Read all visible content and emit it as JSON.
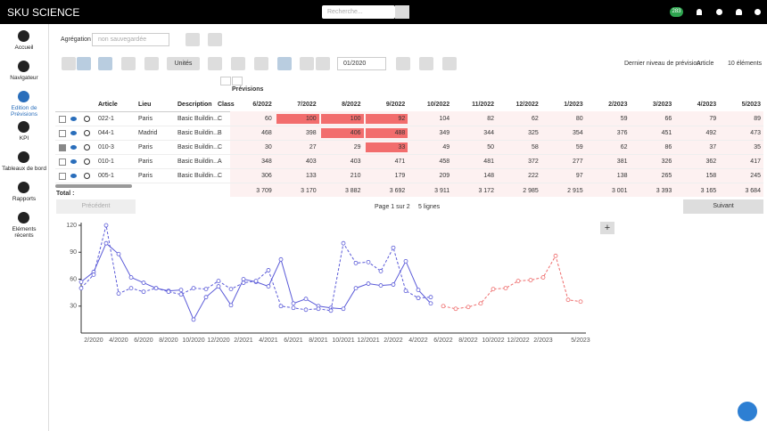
{
  "topbar": {
    "brand": "SKU SCIENCE",
    "search_placeholder": "Recherche...",
    "badge": "283"
  },
  "sidebar": [
    {
      "label": "Accueil",
      "active": false
    },
    {
      "label": "Navigateur",
      "active": false
    },
    {
      "label": "Edition de Prévisions",
      "active": true
    },
    {
      "label": "KPI",
      "active": false
    },
    {
      "label": "Tableaux de bord",
      "active": false
    },
    {
      "label": "Rapports",
      "active": false
    },
    {
      "label": "Eléments récents",
      "active": false
    }
  ],
  "toolbar": {
    "aggregation_label": "Agrégation",
    "aggregation_value": "non sauvegardée",
    "units_button": "Unités",
    "date": "01/2020",
    "level_label": "Dernier niveau de prévision:",
    "level_value": "Article",
    "count": "10 éléments"
  },
  "table": {
    "columns": [
      "Article",
      "Lieu",
      "Description",
      "Class"
    ],
    "forecast_header": "Prévisions",
    "months": [
      "6/2022",
      "7/2022",
      "8/2022",
      "9/2022",
      "10/2022",
      "11/2022",
      "12/2022",
      "1/2023",
      "2/2023",
      "3/2023",
      "4/2023",
      "5/2023"
    ],
    "rows": [
      {
        "checked": false,
        "cells": [
          "022-1",
          "Paris",
          "Basic Buildin...",
          "C"
        ],
        "values": [
          60,
          100,
          100,
          92,
          104,
          82,
          62,
          80,
          59,
          66,
          79,
          89
        ],
        "alerts": [
          false,
          true,
          true,
          true,
          false,
          false,
          false,
          false,
          false,
          false,
          false,
          false
        ]
      },
      {
        "checked": false,
        "cells": [
          "044-1",
          "Madrid",
          "Basic Buildin...",
          "B"
        ],
        "values": [
          468,
          398,
          406,
          488,
          349,
          344,
          325,
          354,
          376,
          451,
          492,
          473
        ],
        "alerts": [
          false,
          false,
          true,
          true,
          false,
          false,
          false,
          false,
          false,
          false,
          false,
          false
        ]
      },
      {
        "checked": true,
        "cells": [
          "010-3",
          "Paris",
          "Basic Buildin...",
          "C"
        ],
        "values": [
          30,
          27,
          29,
          33,
          49,
          50,
          58,
          59,
          62,
          86,
          37,
          35
        ],
        "alerts": [
          false,
          false,
          false,
          true,
          false,
          false,
          false,
          false,
          false,
          false,
          false,
          false
        ]
      },
      {
        "checked": false,
        "cells": [
          "010-1",
          "Paris",
          "Basic Buildin...",
          "A"
        ],
        "values": [
          348,
          403,
          403,
          471,
          458,
          481,
          372,
          277,
          381,
          326,
          362,
          417
        ],
        "alerts": [
          false,
          false,
          false,
          false,
          false,
          false,
          false,
          false,
          false,
          false,
          false,
          false
        ]
      },
      {
        "checked": false,
        "cells": [
          "005-1",
          "Paris",
          "Basic Buildin...",
          "C"
        ],
        "values": [
          306,
          133,
          210,
          179,
          209,
          148,
          222,
          97,
          138,
          265,
          158,
          245
        ],
        "alerts": [
          false,
          false,
          false,
          false,
          false,
          false,
          false,
          false,
          false,
          false,
          false,
          false
        ]
      }
    ],
    "total_label": "Total :",
    "totals": [
      "3 709",
      "3 170",
      "3 882",
      "3 692",
      "3 911",
      "3 172",
      "2 985",
      "2 915",
      "3 001",
      "3 393",
      "3 165",
      "3 684"
    ]
  },
  "pagination": {
    "previous": "Précédent",
    "page": "Page 1 sur 2",
    "rows_per_page": "5 lignes",
    "next": "Suivant"
  },
  "chart_data": {
    "type": "line",
    "categories": [
      null,
      "2/2020",
      null,
      "4/2020",
      null,
      "6/2020",
      null,
      "8/2020",
      null,
      "10/2020",
      null,
      "12/2020",
      null,
      "2/2021",
      null,
      "4/2021",
      null,
      "6/2021",
      null,
      "8/2021",
      null,
      "10/2021",
      null,
      "12/2021",
      null,
      "2/2022",
      null,
      "4/2022",
      null,
      "6/2022",
      null,
      "8/2022",
      null,
      "10/2022",
      null,
      "12/2022",
      null,
      "2/2023",
      null,
      null,
      "5/2023"
    ],
    "ylim": [
      0,
      123
    ],
    "yticks": [
      30,
      60,
      90,
      120
    ],
    "series": [
      {
        "color": "#5a5ad8",
        "dashed": false,
        "values": [
          57,
          68,
          100,
          88,
          62,
          56,
          50,
          47,
          48,
          15,
          40,
          52,
          31,
          60,
          57,
          52,
          82,
          33,
          38,
          30,
          28,
          27,
          50,
          55,
          53,
          54,
          80,
          48,
          33,
          null,
          null,
          null,
          null,
          null,
          null,
          null,
          null,
          null,
          null,
          null,
          null
        ]
      },
      {
        "color": "#5a5ad8",
        "dashed": true,
        "values": [
          50,
          65,
          120,
          44,
          50,
          46,
          50,
          46,
          43,
          50,
          49,
          58,
          49,
          56,
          58,
          70,
          30,
          28,
          26,
          27,
          25,
          100,
          78,
          79,
          69,
          95,
          47,
          39,
          40,
          null,
          null,
          null,
          null,
          null,
          null,
          null,
          null,
          null,
          null,
          null,
          null
        ]
      },
      {
        "color": "#ee6b6b",
        "dashed": true,
        "values": [
          null,
          null,
          null,
          null,
          null,
          null,
          null,
          null,
          null,
          null,
          null,
          null,
          null,
          null,
          null,
          null,
          null,
          null,
          null,
          null,
          null,
          null,
          null,
          null,
          null,
          null,
          null,
          null,
          null,
          30,
          27,
          29,
          33,
          49,
          50,
          58,
          59,
          62,
          86,
          37,
          35
        ]
      }
    ]
  }
}
